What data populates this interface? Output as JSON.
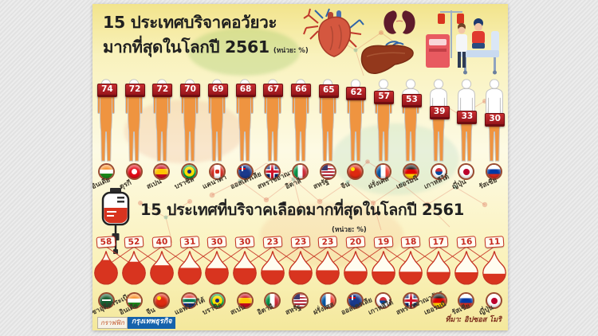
{
  "organ_section": {
    "title_line1": "15 ประเทศบริจาคอวัยวะ",
    "title_line2": "มากที่สุดในโลกปี 2561",
    "unit_label": "(หน่วย: %)",
    "countries": [
      {
        "name": "อินเดีย",
        "value": 74,
        "flag": "india"
      },
      {
        "name": "ตุรกี",
        "value": 72,
        "flag": "turkey"
      },
      {
        "name": "สเปน",
        "value": 72,
        "flag": "spain"
      },
      {
        "name": "บราซิล",
        "value": 70,
        "flag": "brazil"
      },
      {
        "name": "แคนาดา",
        "value": 69,
        "flag": "canada"
      },
      {
        "name": "ออสเตรเลีย",
        "value": 68,
        "flag": "australia"
      },
      {
        "name": "สหราชอาณาจักร",
        "value": 67,
        "flag": "uk"
      },
      {
        "name": "อิตาลี",
        "value": 66,
        "flag": "italy"
      },
      {
        "name": "สหรัฐ",
        "value": 65,
        "flag": "usa"
      },
      {
        "name": "จีน",
        "value": 62,
        "flag": "china"
      },
      {
        "name": "ฝรั่งเศส",
        "value": 57,
        "flag": "france"
      },
      {
        "name": "เยอรมนี",
        "value": 53,
        "flag": "germany"
      },
      {
        "name": "เกาหลีใต้",
        "value": 39,
        "flag": "south-korea"
      },
      {
        "name": "ญี่ปุ่น",
        "value": 33,
        "flag": "japan"
      },
      {
        "name": "รัสเซีย",
        "value": 30,
        "flag": "russia"
      }
    ]
  },
  "blood_section": {
    "title": "15 ประเทศที่บริจาคเลือดมากที่สุดในโลกปี 2561",
    "unit_label": "(หน่วย: %)",
    "countries": [
      {
        "name": "ซาอุดีอาระเบีย",
        "value": 58,
        "flag": "saudi-arabia"
      },
      {
        "name": "อินเดีย",
        "value": 52,
        "flag": "india"
      },
      {
        "name": "จีน",
        "value": 40,
        "flag": "china"
      },
      {
        "name": "แอฟริกาใต้",
        "value": 31,
        "flag": "south-africa"
      },
      {
        "name": "บราซิล",
        "value": 30,
        "flag": "brazil"
      },
      {
        "name": "สเปน",
        "value": 30,
        "flag": "spain"
      },
      {
        "name": "อิตาลี",
        "value": 23,
        "flag": "italy"
      },
      {
        "name": "สหรัฐ",
        "value": 23,
        "flag": "usa"
      },
      {
        "name": "ฝรั่งเศส",
        "value": 23,
        "flag": "france"
      },
      {
        "name": "ออสเตรเลีย",
        "value": 20,
        "flag": "australia"
      },
      {
        "name": "เกาหลีใต้",
        "value": 19,
        "flag": "south-korea"
      },
      {
        "name": "สหราชอาณาจักร",
        "value": 18,
        "flag": "uk"
      },
      {
        "name": "เยอรมนี",
        "value": 17,
        "flag": "germany"
      },
      {
        "name": "รัสเซีย",
        "value": 16,
        "flag": "russia"
      },
      {
        "name": "ญี่ปุ่น",
        "value": 11,
        "flag": "japan"
      }
    ]
  },
  "footer": {
    "credit_label": "กราฟฟิก",
    "credit_brand": "กรุงเทพธุรกิจ",
    "source": "ที่มา: อิปซอส โมริ"
  },
  "colors": {
    "body_fill": "#ef9440",
    "badge_red": "#a91e23",
    "drop_fill": "#d8341f",
    "drop_outline": "#c63322",
    "card_yellow": "#f9f2bd",
    "brand_blue": "#1562ac"
  },
  "chart_data": [
    {
      "type": "bar",
      "title": "15 ประเทศบริจาคอวัยวะมากที่สุดในโลกปี 2561",
      "unit": "%",
      "categories": [
        "อินเดีย",
        "ตุรกี",
        "สเปน",
        "บราซิล",
        "แคนาดา",
        "ออสเตรเลีย",
        "สหราชอาณาจักร",
        "อิตาลี",
        "สหรัฐ",
        "จีน",
        "ฝรั่งเศส",
        "เยอรมนี",
        "เกาหลีใต้",
        "ญี่ปุ่น",
        "รัสเซีย"
      ],
      "values": [
        74,
        72,
        72,
        70,
        69,
        68,
        67,
        66,
        65,
        62,
        57,
        53,
        39,
        33,
        30
      ],
      "ylim": [
        0,
        100
      ],
      "style": "pictogram-human-figures"
    },
    {
      "type": "bar",
      "title": "15 ประเทศที่บริจาคเลือดมากที่สุดในโลกปี 2561",
      "unit": "%",
      "categories": [
        "ซาอุดีอาระเบีย",
        "อินเดีย",
        "จีน",
        "แอฟริกาใต้",
        "บราซิล",
        "สเปน",
        "อิตาลี",
        "สหรัฐ",
        "ฝรั่งเศส",
        "ออสเตรเลีย",
        "เกาหลีใต้",
        "สหราชอาณาจักร",
        "เยอรมนี",
        "รัสเซีย",
        "ญี่ปุ่น"
      ],
      "values": [
        58,
        52,
        40,
        31,
        30,
        30,
        23,
        23,
        23,
        20,
        19,
        18,
        17,
        16,
        11
      ],
      "ylim": [
        0,
        100
      ],
      "style": "pictogram-blood-drops"
    }
  ]
}
